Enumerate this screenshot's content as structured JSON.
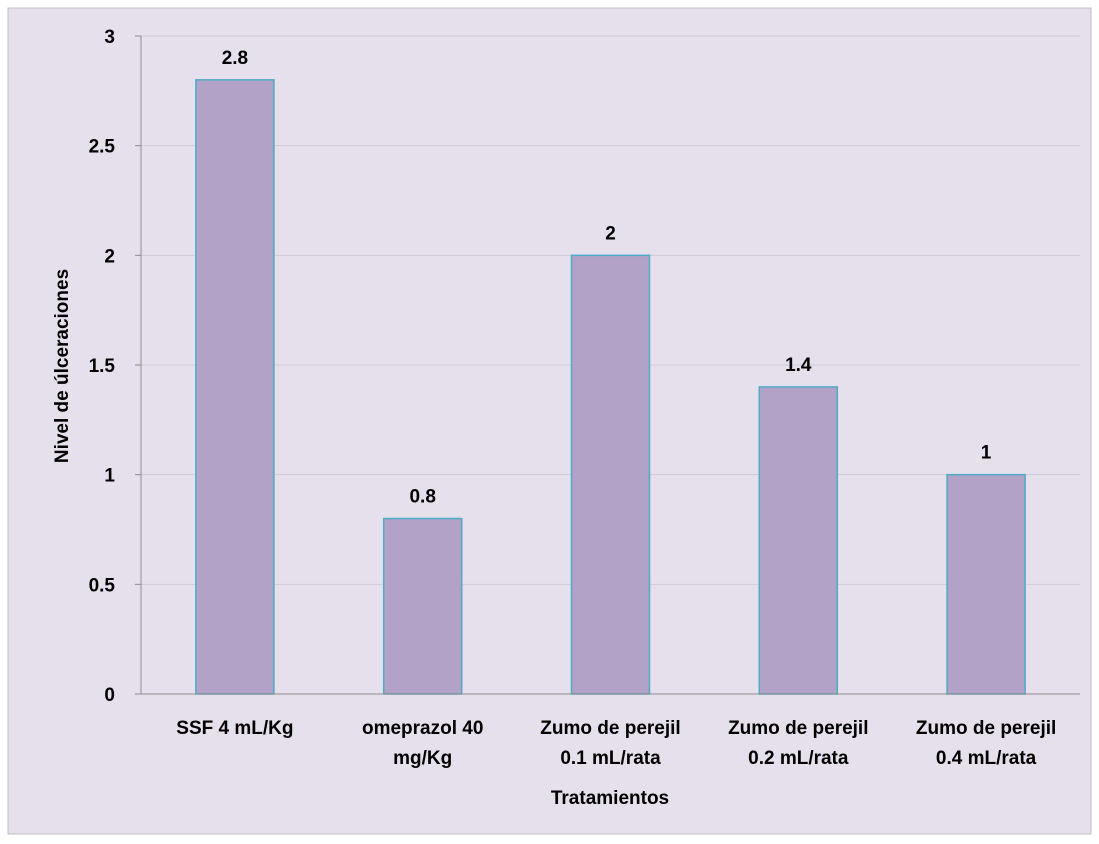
{
  "chart_data": {
    "type": "bar",
    "title": "",
    "xlabel": "Tratamientos",
    "ylabel": "Nivel de úlceraciones",
    "ylim": [
      0,
      3
    ],
    "yticks": [
      0,
      0.5,
      1,
      1.5,
      2,
      2.5,
      3
    ],
    "grid": true,
    "legend": "none",
    "categories": [
      [
        "SSF 4 mL/Kg"
      ],
      [
        "omeprazol 40",
        "mg/Kg"
      ],
      [
        "Zumo de perejil",
        "0.1 mL/rata"
      ],
      [
        "Zumo de perejil",
        "0.2 mL/rata"
      ],
      [
        "Zumo de perejil",
        "0.4 mL/rata"
      ]
    ],
    "values": [
      2.8,
      0.8,
      2,
      1.4,
      1
    ],
    "colors": {
      "background": "#e6e0ec",
      "bar_fill": "#b3a2c7",
      "bar_stroke": "#4bacc6",
      "gridline": "#d0cad8",
      "axis": "#8c8c8c"
    }
  }
}
